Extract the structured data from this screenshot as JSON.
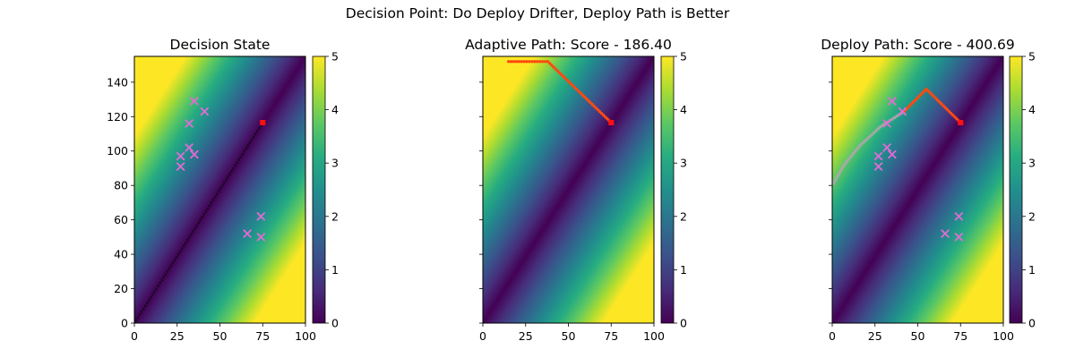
{
  "figure": {
    "suptitle": "Decision Point: Do Deploy Drifter, Deploy Path is Better"
  },
  "colors": {
    "cross": "#e36bd4",
    "path": "#e8241a",
    "path_dot": "#ff4a10",
    "deploy_tail": "#a8a8a8",
    "start": "#ff1010",
    "diagonal": "#1a0a28"
  },
  "chart_data": [
    {
      "type": "heatmap",
      "title": "Decision State",
      "xlim": [
        0,
        100
      ],
      "ylim": [
        0,
        155
      ],
      "xticks": [
        "0",
        "25",
        "50",
        "75",
        "100"
      ],
      "yticks": [
        "0",
        "20",
        "40",
        "60",
        "80",
        "100",
        "120",
        "140"
      ],
      "show_yticklabels": true,
      "colorbar": {
        "min": 0,
        "max": 5,
        "ticks": [
          "0",
          "1",
          "2",
          "3",
          "4",
          "5"
        ],
        "colormap": "viridis"
      },
      "field": "distance from line y = 1.55x, scaled",
      "crosses": [
        [
          35,
          129
        ],
        [
          41,
          123
        ],
        [
          32,
          116
        ],
        [
          32,
          102
        ],
        [
          35,
          98
        ],
        [
          27,
          97
        ],
        [
          27,
          91
        ],
        [
          74,
          62
        ],
        [
          66,
          52
        ],
        [
          74,
          50
        ]
      ],
      "start": [
        75,
        116.5
      ],
      "diagonal_path": [
        [
          0,
          0
        ],
        [
          75,
          116.5
        ]
      ]
    },
    {
      "type": "heatmap",
      "title": "Adaptive Path: Score - 186.40",
      "xlim": [
        0,
        100
      ],
      "ylim": [
        0,
        155
      ],
      "xticks": [
        "0",
        "25",
        "50",
        "75",
        "100"
      ],
      "yticks": [
        "0",
        "20",
        "40",
        "60",
        "80",
        "100",
        "120",
        "140"
      ],
      "show_yticklabels": false,
      "colorbar": {
        "min": 0,
        "max": 5,
        "ticks": [
          "0",
          "1",
          "2",
          "3",
          "4",
          "5"
        ],
        "colormap": "viridis"
      },
      "field": "distance from line y = 1.55x, scaled",
      "start": [
        75,
        116.5
      ],
      "path": [
        [
          75,
          116.5
        ],
        [
          38,
          152
        ],
        [
          15,
          152
        ]
      ]
    },
    {
      "type": "heatmap",
      "title": "Deploy Path: Score - 400.69",
      "xlim": [
        0,
        100
      ],
      "ylim": [
        0,
        155
      ],
      "xticks": [
        "0",
        "25",
        "50",
        "75",
        "100"
      ],
      "yticks": [
        "0",
        "20",
        "40",
        "60",
        "80",
        "100",
        "120",
        "140"
      ],
      "show_yticklabels": false,
      "colorbar": {
        "min": 0,
        "max": 5,
        "ticks": [
          "0",
          "1",
          "2",
          "3",
          "4",
          "5"
        ],
        "colormap": "viridis"
      },
      "field": "distance from line y = 1.55x, scaled",
      "crosses": [
        [
          35,
          129
        ],
        [
          41,
          123
        ],
        [
          32,
          116
        ],
        [
          32,
          102
        ],
        [
          35,
          98
        ],
        [
          27,
          97
        ],
        [
          27,
          91
        ],
        [
          74,
          62
        ],
        [
          66,
          52
        ],
        [
          74,
          50
        ]
      ],
      "start": [
        75,
        116.5
      ],
      "path": [
        [
          75,
          116.5
        ],
        [
          55,
          136
        ],
        [
          42,
          123
        ]
      ],
      "deploy_tail": [
        [
          42,
          123
        ],
        [
          28,
          114
        ],
        [
          16,
          103
        ],
        [
          7,
          92
        ],
        [
          0,
          80
        ]
      ]
    }
  ]
}
